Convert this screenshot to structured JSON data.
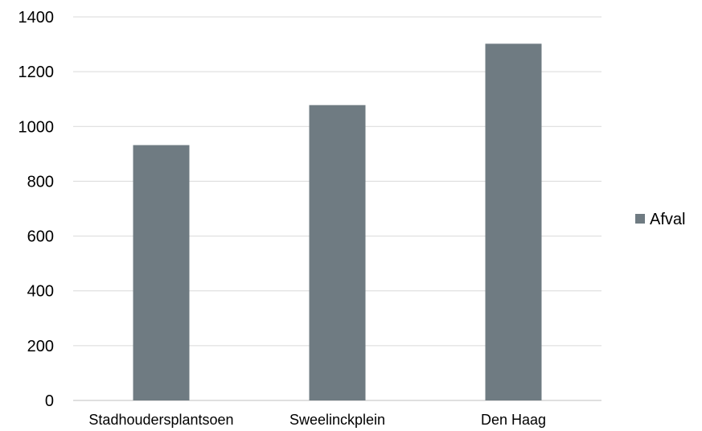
{
  "chart_data": {
    "type": "bar",
    "categories": [
      "Stadhoudersplantsoen",
      "Sweelinckplein",
      "Den Haag"
    ],
    "series": [
      {
        "name": "Afval",
        "values": [
          932,
          1078,
          1302
        ]
      }
    ],
    "ylim": [
      0,
      1400
    ],
    "yticks": [
      0,
      200,
      400,
      600,
      800,
      1000,
      1200,
      1400
    ],
    "grid": true,
    "legend": "right",
    "colors": {
      "bar": "#6f7b82",
      "grid": "#d9d9d9",
      "axis": "#bfbfbf"
    }
  }
}
